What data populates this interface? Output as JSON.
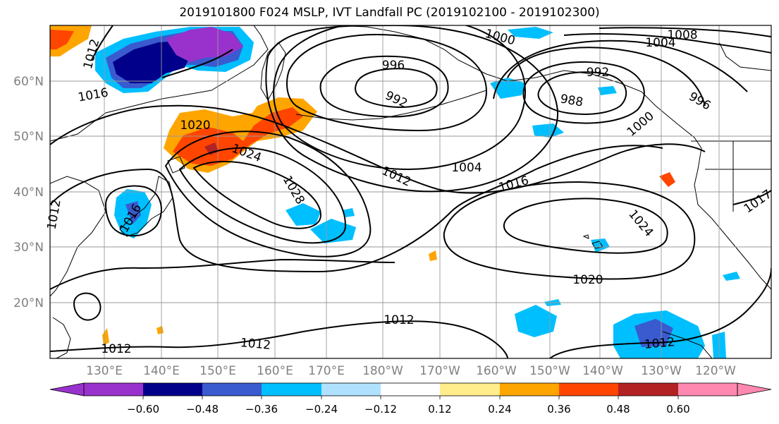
{
  "title": "2019101800 F024 MSLP, IVT Landfall PC (2019102100 - 2019102300)",
  "lat_labels": [
    "60°N",
    "50°N",
    "40°N",
    "30°N",
    "20°N"
  ],
  "lon_labels": [
    "130°E",
    "140°E",
    "150°E",
    "160°E",
    "170°E",
    "180°W",
    "170°W",
    "160°W",
    "150°W",
    "140°W",
    "130°W",
    "120°W"
  ],
  "contour_labels": [
    "1012",
    "1016",
    "1020",
    "1024",
    "1028",
    "1016",
    "996",
    "992",
    "1000",
    "1008",
    "1004",
    "992",
    "988",
    "1000",
    "996",
    "1012",
    "1004",
    "1016",
    "1024",
    "1020",
    "1012",
    "1012",
    "1012",
    "1012",
    "1017",
    "1012"
  ],
  "colorbar": {
    "colors": [
      "#9932cc",
      "#00008b",
      "#3a5bcf",
      "#00bfff",
      "#b0e2ff",
      "#ffffff",
      "#ffec8b",
      "#ffa500",
      "#ff4500",
      "#b22222",
      "#ff88b0"
    ],
    "tick_labels": [
      "−0.60",
      "−0.48",
      "−0.36",
      "−0.24",
      "−0.12",
      "0.12",
      "0.24",
      "0.36",
      "0.48",
      "0.60"
    ]
  },
  "colors": {
    "grid": "#999999",
    "contour": "#000000",
    "coast": "#000000",
    "axis_text": "#808080"
  }
}
